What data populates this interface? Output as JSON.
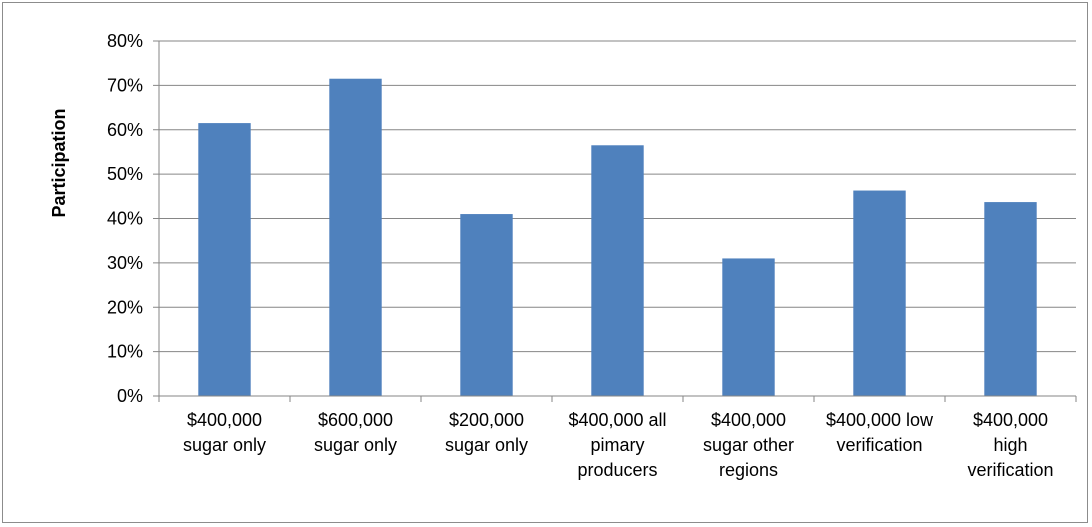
{
  "chart_data": {
    "type": "bar",
    "title": "",
    "xlabel": "",
    "ylabel": "Participation",
    "ylim": [
      0,
      80
    ],
    "yticks": [
      0,
      10,
      20,
      30,
      40,
      50,
      60,
      70,
      80
    ],
    "ytick_labels": [
      "0%",
      "10%",
      "20%",
      "30%",
      "40%",
      "50%",
      "60%",
      "70%",
      "80%"
    ],
    "grid": true,
    "legend": "none",
    "bar_color": "#4F81BD",
    "categories": [
      [
        "$400,000",
        "sugar only"
      ],
      [
        "$600,000",
        "sugar only"
      ],
      [
        "$200,000",
        "sugar only"
      ],
      [
        "$400,000 all",
        "pimary",
        "producers"
      ],
      [
        "$400,000",
        "sugar other",
        "regions"
      ],
      [
        "$400,000 low",
        "verification"
      ],
      [
        "$400,000",
        "high",
        "verification"
      ]
    ],
    "values": [
      61.5,
      71.5,
      41,
      56.5,
      31,
      46.3,
      43.7
    ]
  }
}
